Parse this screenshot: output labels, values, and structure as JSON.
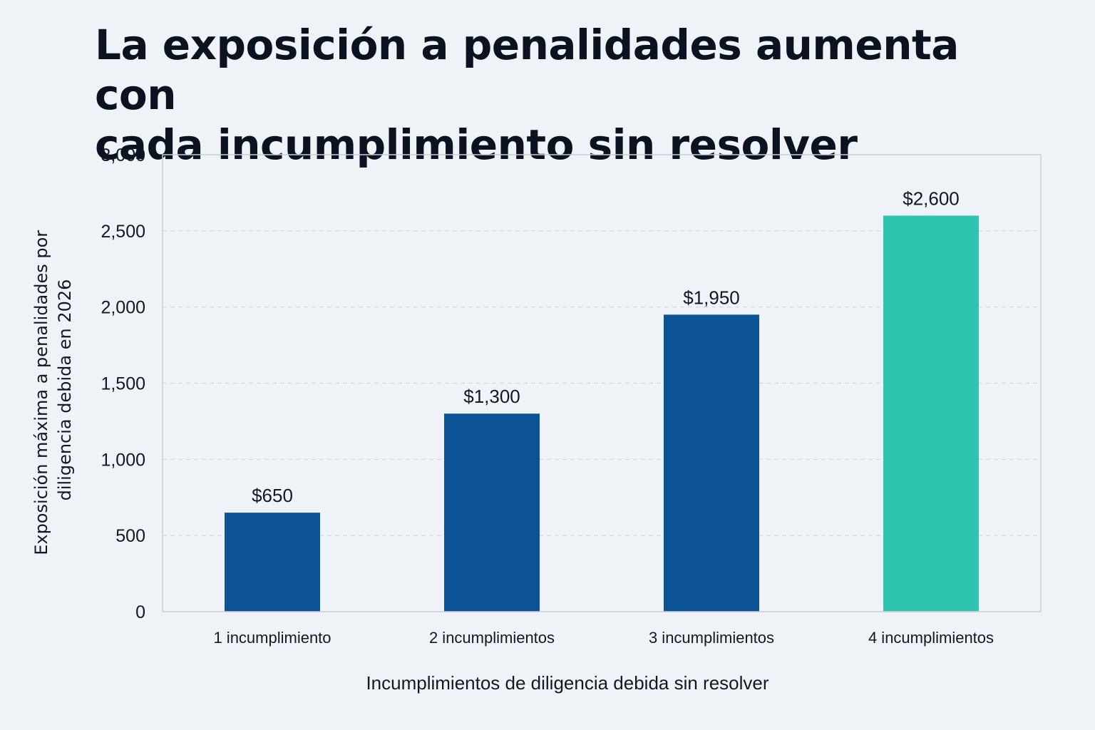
{
  "chart_data": {
    "type": "bar",
    "title": "La exposición a penalidades aumenta con cada incumplimiento sin resolver",
    "title_lines": [
      "La exposición a penalidades aumenta con",
      "cada incumplimiento sin resolver"
    ],
    "xlabel": "Incumplimientos de diligencia debida sin resolver",
    "ylabel": "Exposición máxima a penalidades por diligencia debida en 2026",
    "ylabel_lines": [
      "Exposición máxima a penalidades por",
      "diligencia debida en 2026"
    ],
    "categories": [
      "1 incumplimiento",
      "2 incumplimientos",
      "3 incumplimientos",
      "4 incumplimientos"
    ],
    "values": [
      650,
      1300,
      1950,
      2600
    ],
    "data_labels": [
      "$650",
      "$1,300",
      "$1,950",
      "$2,600"
    ],
    "ylim": [
      0,
      3000
    ],
    "yticks": [
      0,
      500,
      1000,
      1500,
      2000,
      2500,
      3000
    ],
    "ytick_labels": [
      "0",
      "500",
      "1,000",
      "1,500",
      "2,000",
      "2,500",
      "3,000"
    ],
    "grid": true,
    "legend": "none",
    "bar_colors": [
      "#0b5394",
      "#0b5394",
      "#0b5394",
      "#2ec4b0"
    ],
    "gridline_color": "#cfd6e0",
    "frame_color": "#c7ced9"
  }
}
